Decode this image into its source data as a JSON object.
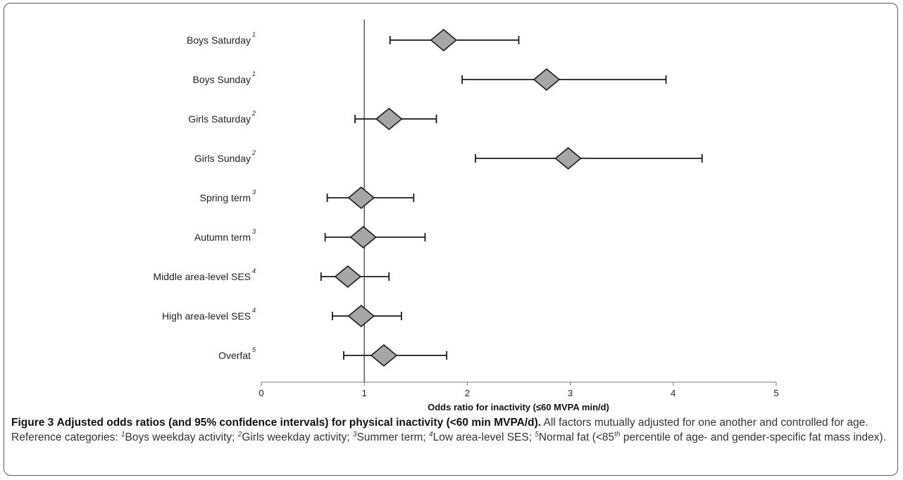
{
  "chart_data": {
    "type": "forest",
    "xlabel": "Odds ratio for inactivity (≤60 MVPA min/d)",
    "xlim": [
      0,
      5
    ],
    "xticks": [
      0,
      1,
      2,
      3,
      4,
      5
    ],
    "reference_line": 1,
    "rows": [
      {
        "label": "Boys Saturday",
        "sup": "1",
        "or": 1.77,
        "lo": 1.25,
        "hi": 2.5
      },
      {
        "label": "Boys Sunday",
        "sup": "1",
        "or": 2.77,
        "lo": 1.95,
        "hi": 3.93
      },
      {
        "label": "Girls Saturday",
        "sup": "2",
        "or": 1.24,
        "lo": 0.91,
        "hi": 1.7
      },
      {
        "label": "Girls Sunday",
        "sup": "2",
        "or": 2.98,
        "lo": 2.08,
        "hi": 4.28
      },
      {
        "label": "Spring term",
        "sup": "3",
        "or": 0.97,
        "lo": 0.64,
        "hi": 1.48
      },
      {
        "label": "Autumn term",
        "sup": "3",
        "or": 0.99,
        "lo": 0.62,
        "hi": 1.59
      },
      {
        "label": "Middle area-level SES",
        "sup": "4",
        "or": 0.84,
        "lo": 0.58,
        "hi": 1.24
      },
      {
        "label": "High area-level SES",
        "sup": "4",
        "or": 0.97,
        "lo": 0.69,
        "hi": 1.36
      },
      {
        "label": "Overfat",
        "sup": "5",
        "or": 1.19,
        "lo": 0.8,
        "hi": 1.8
      }
    ],
    "colors": {
      "marker_fill": "#a6a6a6",
      "marker_stroke": "#1a1a1a",
      "line": "#1a1a1a",
      "text": "#222222"
    }
  },
  "caption": {
    "figure_label": "Figure 3",
    "title": "Adjusted odds ratios (and 95% confidence intervals) for physical inactivity (<60 min MVPA/d).",
    "sentence1": "All factors mutually adjusted for one another and controlled for age. Reference categories:",
    "ref1": "Boys weekday activity;",
    "ref2": "Girls weekday activity;",
    "ref3": "Summer term;",
    "ref4": "Low area-level SES;",
    "ref5_a": "Normal fat (<85",
    "ref5_sup": "th",
    "ref5_b": "percentile of age- and gender-specific fat mass index)."
  }
}
